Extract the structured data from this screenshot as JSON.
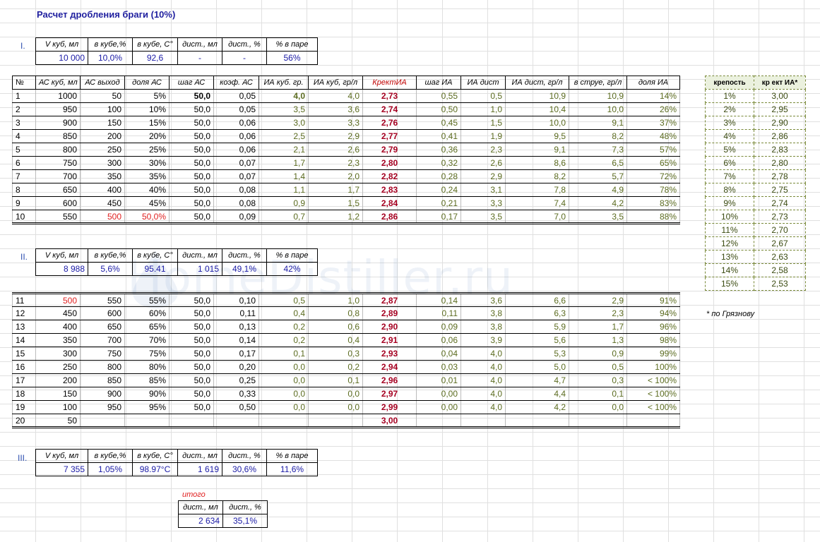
{
  "title": "Расчет дробления браги (10%)",
  "watermark": "HomeDistiller.ru",
  "summary_headers": [
    "V куб, мл",
    "в кубе,%",
    "в кубе, C°",
    "дист., мл",
    "дист., %",
    "% в паре"
  ],
  "section1": {
    "label": "I.",
    "values": [
      "10 000",
      "10,0%",
      "92,6",
      "-",
      "-",
      "56%"
    ]
  },
  "section2": {
    "label": "II.",
    "values": [
      "8 988",
      "5,6%",
      "95.41",
      "1 015",
      "49,1%",
      "42%"
    ]
  },
  "section3": {
    "label": "III.",
    "values": [
      "7 355",
      "1,05%",
      "98.97°C",
      "1 619",
      "30,6%",
      "11,6%"
    ]
  },
  "main_headers": [
    "№",
    "АС куб, мл",
    "АС выход",
    "доля АС",
    "шаг АС",
    "коэф. АС",
    "ИА куб. гр.",
    "ИА куб, гр/л",
    "КректИА",
    "шаг ИА",
    "ИА дист",
    "ИА дист, гр/л",
    "в струе, гр/л",
    "доля ИА"
  ],
  "rows1": [
    [
      "1",
      "1000",
      "50",
      "5%",
      "50,0",
      "0,05",
      "4,0",
      "4,0",
      "2,73",
      "0,55",
      "0,5",
      "10,9",
      "10,9",
      "14%"
    ],
    [
      "2",
      "950",
      "100",
      "10%",
      "50,0",
      "0,05",
      "3,5",
      "3,6",
      "2,74",
      "0,50",
      "1,0",
      "10,4",
      "10,0",
      "26%"
    ],
    [
      "3",
      "900",
      "150",
      "15%",
      "50,0",
      "0,06",
      "3,0",
      "3,3",
      "2,76",
      "0,45",
      "1,5",
      "10,0",
      "9,1",
      "37%"
    ],
    [
      "4",
      "850",
      "200",
      "20%",
      "50,0",
      "0,06",
      "2,5",
      "2,9",
      "2,77",
      "0,41",
      "1,9",
      "9,5",
      "8,2",
      "48%"
    ],
    [
      "5",
      "800",
      "250",
      "25%",
      "50,0",
      "0,06",
      "2,1",
      "2,6",
      "2,79",
      "0,36",
      "2,3",
      "9,1",
      "7,3",
      "57%"
    ],
    [
      "6",
      "750",
      "300",
      "30%",
      "50,0",
      "0,07",
      "1,7",
      "2,3",
      "2,80",
      "0,32",
      "2,6",
      "8,6",
      "6,5",
      "65%"
    ],
    [
      "7",
      "700",
      "350",
      "35%",
      "50,0",
      "0,07",
      "1,4",
      "2,0",
      "2,82",
      "0,28",
      "2,9",
      "8,2",
      "5,7",
      "72%"
    ],
    [
      "8",
      "650",
      "400",
      "40%",
      "50,0",
      "0,08",
      "1,1",
      "1,7",
      "2,83",
      "0,24",
      "3,1",
      "7,8",
      "4,9",
      "78%"
    ],
    [
      "9",
      "600",
      "450",
      "45%",
      "50,0",
      "0,08",
      "0,9",
      "1,5",
      "2,84",
      "0,21",
      "3,3",
      "7,4",
      "4,2",
      "83%"
    ],
    [
      "10",
      "550",
      "500",
      "50,0%",
      "50,0",
      "0,09",
      "0,7",
      "1,2",
      "2,86",
      "0,17",
      "3,5",
      "7,0",
      "3,5",
      "88%"
    ]
  ],
  "rows2": [
    [
      "11",
      "500",
      "550",
      "55%",
      "50,0",
      "0,10",
      "0,5",
      "1,0",
      "2,87",
      "0,14",
      "3,6",
      "6,6",
      "2,9",
      "91%"
    ],
    [
      "12",
      "450",
      "600",
      "60%",
      "50,0",
      "0,11",
      "0,4",
      "0,8",
      "2,89",
      "0,11",
      "3,8",
      "6,3",
      "2,3",
      "94%"
    ],
    [
      "13",
      "400",
      "650",
      "65%",
      "50,0",
      "0,13",
      "0,2",
      "0,6",
      "2,90",
      "0,09",
      "3,8",
      "5,9",
      "1,7",
      "96%"
    ],
    [
      "14",
      "350",
      "700",
      "70%",
      "50,0",
      "0,14",
      "0,2",
      "0,4",
      "2,91",
      "0,06",
      "3,9",
      "5,6",
      "1,3",
      "98%"
    ],
    [
      "15",
      "300",
      "750",
      "75%",
      "50,0",
      "0,17",
      "0,1",
      "0,3",
      "2,93",
      "0,04",
      "4,0",
      "5,3",
      "0,9",
      "99%"
    ],
    [
      "16",
      "250",
      "800",
      "80%",
      "50,0",
      "0,20",
      "0,0",
      "0,2",
      "2,94",
      "0,03",
      "4,0",
      "5,0",
      "0,5",
      "100%"
    ],
    [
      "17",
      "200",
      "850",
      "85%",
      "50,0",
      "0,25",
      "0,0",
      "0,1",
      "2,96",
      "0,01",
      "4,0",
      "4,7",
      "0,3",
      "< 100%"
    ],
    [
      "18",
      "150",
      "900",
      "90%",
      "50,0",
      "0,33",
      "0,0",
      "0,0",
      "2,97",
      "0,00",
      "4,0",
      "4,4",
      "0,1",
      "< 100%"
    ],
    [
      "19",
      "100",
      "950",
      "95%",
      "50,0",
      "0,50",
      "0,0",
      "0,0",
      "2,99",
      "0,00",
      "4,0",
      "4,2",
      "0,0",
      "< 100%"
    ],
    [
      "20",
      "50",
      "",
      "",
      "",
      "",
      "",
      "",
      "3,00",
      "",
      "",
      "",
      "",
      ""
    ]
  ],
  "side_headers": [
    "крепость",
    "кр ект ИА*"
  ],
  "side_rows": [
    [
      "1%",
      "3,00"
    ],
    [
      "2%",
      "2,95"
    ],
    [
      "3%",
      "2,90"
    ],
    [
      "4%",
      "2,86"
    ],
    [
      "5%",
      "2,83"
    ],
    [
      "6%",
      "2,80"
    ],
    [
      "7%",
      "2,78"
    ],
    [
      "8%",
      "2,75"
    ],
    [
      "9%",
      "2,74"
    ],
    [
      "10%",
      "2,73"
    ],
    [
      "11%",
      "2,70"
    ],
    [
      "12%",
      "2,67"
    ],
    [
      "13%",
      "2,63"
    ],
    [
      "14%",
      "2,58"
    ],
    [
      "15%",
      "2,53"
    ]
  ],
  "side_note": "* по Грязнову",
  "total": {
    "label": "итого",
    "headers": [
      "дист., мл",
      "дист., %"
    ],
    "values": [
      "2 634",
      "35,1%"
    ]
  }
}
